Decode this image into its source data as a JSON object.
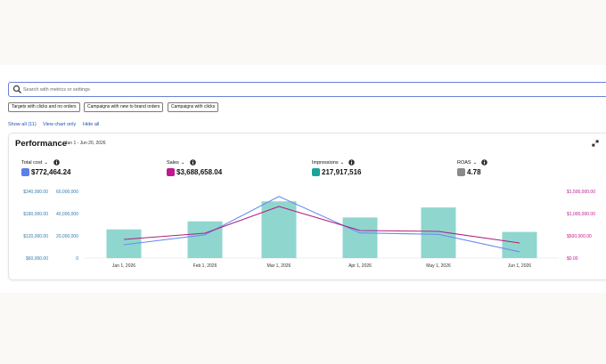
{
  "search": {
    "placeholder": "Search with metrics or settings"
  },
  "chips": [
    "Targets with clicks and no orders",
    "Campaigns with new to brand orders",
    "Campaigns with clicks"
  ],
  "links": {
    "show_all": "Show all (11)",
    "view_chart_only": "View chart only",
    "hide_all": "Hide all"
  },
  "performance": {
    "title": "Performance",
    "date_range": "Jan 1 - Jun 20, 2026"
  },
  "metrics": [
    {
      "label": "Total cost",
      "value": "$772,464.24",
      "color": "#5b7fea"
    },
    {
      "label": "Sales",
      "value": "$3,688,658.04",
      "color": "#c2188f"
    },
    {
      "label": "Impressions",
      "value": "217,917,516",
      "color": "#1aa39a"
    },
    {
      "label": "ROAS",
      "value": "4.78",
      "color": "#8a8a8a"
    }
  ],
  "colors": {
    "bar": "#8fd6cf",
    "cost_line": "#6b8cf0",
    "sales_line": "#b0207f",
    "left_axis": "#2f7bb0",
    "right_axis": "#c2188f"
  },
  "chart_data": {
    "type": "bar+line",
    "x": [
      "Jan 1, 2026",
      "Feb 1, 2026",
      "Mar 1, 2026",
      "Apr 1, 2026",
      "May 1, 2026",
      "Jun 1, 2026"
    ],
    "axes": {
      "cost": {
        "ticks": [
          "$60,000.00",
          "$120,000.00",
          "$180,000.00",
          "$240,000.00"
        ],
        "range": [
          60000,
          240000
        ]
      },
      "impressions": {
        "ticks": [
          "0",
          "20,000,000",
          "40,000,000",
          "60,000,000"
        ],
        "range": [
          0,
          60000000
        ]
      },
      "sales": {
        "ticks": [
          "$0.00",
          "$500,000.00",
          "$1,000,000.00",
          "$1,500,000.00"
        ],
        "range": [
          0,
          1500000
        ]
      }
    },
    "series": [
      {
        "name": "Impressions",
        "type": "bar",
        "axis": "impressions",
        "values": [
          25800000,
          33000000,
          51000000,
          36500000,
          45500000,
          23500000
        ]
      },
      {
        "name": "Total cost",
        "type": "line",
        "axis": "cost",
        "values": [
          96000,
          123000,
          226000,
          128000,
          124000,
          77000
        ]
      },
      {
        "name": "Sales",
        "type": "line",
        "axis": "sales",
        "values": [
          420000,
          560000,
          1160000,
          620000,
          600000,
          340000
        ]
      }
    ]
  }
}
